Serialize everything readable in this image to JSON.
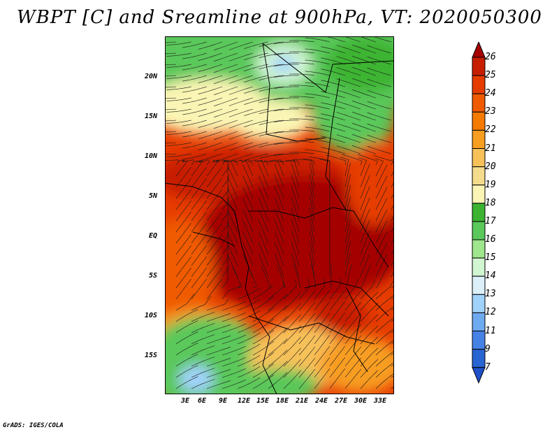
{
  "title": "WBPT [C] and Sreamline at 900hPa, VT: 2020050300",
  "footer": "GrADS: IGES/COLA",
  "map": {
    "lat_labels": [
      "20N",
      "15N",
      "10N",
      "5N",
      "EQ",
      "5S",
      "10S",
      "15S"
    ],
    "lon_labels": [
      "3E",
      "6E",
      "9E",
      "12E",
      "15E",
      "18E",
      "21E",
      "24E",
      "27E",
      "30E",
      "33E"
    ]
  },
  "colorbar": {
    "levels": [
      "26",
      "25",
      "24",
      "23",
      "22",
      "21",
      "20",
      "19",
      "18",
      "17",
      "16",
      "15",
      "14",
      "13",
      "12",
      "11",
      "9",
      "7"
    ],
    "colors": [
      "#a50000",
      "#c81e00",
      "#e63c00",
      "#f05a00",
      "#f57a00",
      "#f79d20",
      "#f7c15a",
      "#f5dc8c",
      "#faf5b4",
      "#3cb432",
      "#5ac85a",
      "#a0e68c",
      "#d2f5d2",
      "#dcf0fa",
      "#a0d2fa",
      "#6eaaf0",
      "#4682e6",
      "#2864d2",
      "#1e50c8"
    ]
  }
}
